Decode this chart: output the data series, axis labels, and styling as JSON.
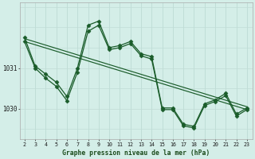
{
  "bg_color": "#d4eee8",
  "line_color": "#1a5c2a",
  "grid_color_v": "#b8d8d0",
  "grid_color_h": "#c0dcd6",
  "xlabel": "Graphe pression niveau de la mer (hPa)",
  "yticks": [
    1030,
    1031
  ],
  "xticks": [
    2,
    3,
    4,
    5,
    6,
    7,
    8,
    9,
    10,
    11,
    12,
    13,
    14,
    15,
    16,
    17,
    18,
    19,
    20,
    21,
    22,
    23
  ],
  "ylim": [
    1029.25,
    1032.6
  ],
  "xlim": [
    1.6,
    23.5
  ],
  "series": [
    {
      "x": [
        2,
        3,
        4,
        5,
        6,
        7,
        8,
        9,
        10,
        11,
        12,
        13,
        14,
        15,
        16,
        17,
        18,
        19,
        20,
        21,
        22,
        23
      ],
      "y": [
        1031.75,
        1031.05,
        1030.85,
        1030.65,
        1030.3,
        1031.0,
        1032.05,
        1032.15,
        1031.5,
        1031.55,
        1031.65,
        1031.35,
        1031.28,
        1030.02,
        1030.02,
        1029.62,
        1029.57,
        1030.12,
        1030.22,
        1030.38,
        1029.87,
        1030.02
      ],
      "marker": "D",
      "ms": 2.5,
      "lw": 0.9
    },
    {
      "x": [
        2,
        3,
        4,
        5,
        6,
        7,
        8,
        9,
        10,
        11,
        12,
        13,
        14,
        15,
        16,
        17,
        18,
        19,
        20,
        21,
        22,
        23
      ],
      "y": [
        1031.65,
        1031.0,
        1030.75,
        1030.55,
        1030.2,
        1030.9,
        1031.9,
        1032.05,
        1031.45,
        1031.5,
        1031.6,
        1031.3,
        1031.22,
        1029.98,
        1029.98,
        1029.58,
        1029.53,
        1030.08,
        1030.18,
        1030.32,
        1029.82,
        1029.98
      ],
      "marker": "D",
      "ms": 2.5,
      "lw": 0.9
    },
    {
      "x": [
        2,
        23
      ],
      "y": [
        1031.72,
        1030.05
      ],
      "marker": null,
      "ms": 0,
      "lw": 0.85
    },
    {
      "x": [
        2,
        23
      ],
      "y": [
        1031.65,
        1029.98
      ],
      "marker": null,
      "ms": 0,
      "lw": 0.85
    }
  ]
}
